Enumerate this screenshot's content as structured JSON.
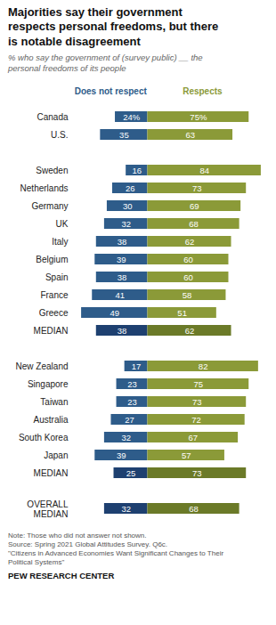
{
  "chart_data": {
    "type": "bar",
    "orientation": "horizontal",
    "title": "Majorities say their government\nrespects personal freedoms, but there\nis notable disagreement",
    "subtitle": "% who say the government of (survey public) __ the\npersonal freedoms of its people",
    "annotations": [
      "Note: Those who did not answer not shown.\nSource: Spring 2021 Global Attitudes Survey. Q6c.\n\"Citizens in Advanced Economies Want Significant Changes to Their\nPolitical Systems\"",
      "PEW RESEARCH CENTER"
    ],
    "categories": [
      "Canada",
      "U.S.",
      null,
      "Sweden",
      "Netherlands",
      "Germany",
      "UK",
      "Italy",
      "Belgium",
      "Spain",
      "France",
      "Greece",
      "MEDIAN",
      null,
      "New Zealand",
      "Singapore",
      "Taiwan",
      "Australia",
      "South Korea",
      "Japan",
      "MEDIAN",
      null,
      "OVERALL\nMEDIAN"
    ],
    "series": [
      {
        "name": "Does not respect",
        "values": [
          24,
          35,
          null,
          16,
          26,
          30,
          32,
          38,
          39,
          38,
          41,
          49,
          38,
          null,
          17,
          23,
          23,
          27,
          32,
          39,
          25,
          null,
          32
        ],
        "value_labels": [
          "24%",
          "35",
          null,
          "16",
          "26",
          "30",
          "32",
          "38",
          "39",
          "38",
          "41",
          "49",
          "38",
          null,
          "17",
          "23",
          "23",
          "27",
          "32",
          "39",
          "25",
          null,
          "32"
        ],
        "colors": [
          "#2E5C8A",
          "#2E5C8A",
          null,
          "#2E5C8A",
          "#2E5C8A",
          "#2E5C8A",
          "#2E5C8A",
          "#2E5C8A",
          "#2E5C8A",
          "#2E5C8A",
          "#2E5C8A",
          "#2E5C8A",
          "#1E4070",
          null,
          "#2E5C8A",
          "#2E5C8A",
          "#2E5C8A",
          "#2E5C8A",
          "#2E5C8A",
          "#2E5C8A",
          "#1E4070",
          null,
          "#1E4070"
        ]
      },
      {
        "name": "Respects",
        "values": [
          75,
          63,
          null,
          84,
          73,
          69,
          68,
          62,
          60,
          60,
          58,
          51,
          62,
          null,
          82,
          75,
          73,
          72,
          67,
          57,
          73,
          null,
          68
        ],
        "value_labels": [
          "75%",
          "63",
          null,
          "84",
          "73",
          "69",
          "68",
          "62",
          "60",
          "60",
          "58",
          "51",
          "62",
          null,
          "82",
          "75",
          "73",
          "72",
          "67",
          "57",
          "73",
          null,
          "68"
        ],
        "colors": [
          "#8B9A38",
          "#8B9A38",
          null,
          "#8B9A38",
          "#8B9A38",
          "#8B9A38",
          "#8B9A38",
          "#8B9A38",
          "#8B9A38",
          "#8B9A38",
          "#8B9A38",
          "#8B9A38",
          "#6B7A28",
          null,
          "#8B9A38",
          "#8B9A38",
          "#8B9A38",
          "#8B9A38",
          "#8B9A38",
          "#8B9A38",
          "#6B7A28",
          null,
          "#6B7A28"
        ]
      }
    ],
    "xlim": [
      -55,
      90
    ],
    "tick_labels": "y",
    "data_labels": true,
    "legend": "top",
    "grid": false
  }
}
